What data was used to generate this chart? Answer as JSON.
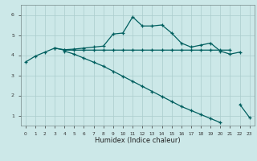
{
  "xlabel": "Humidex (Indice chaleur)",
  "xlim": [
    -0.5,
    23.5
  ],
  "ylim": [
    0.5,
    6.5
  ],
  "xticks": [
    0,
    1,
    2,
    3,
    4,
    5,
    6,
    7,
    8,
    9,
    10,
    11,
    12,
    13,
    14,
    15,
    16,
    17,
    18,
    19,
    20,
    21,
    22,
    23
  ],
  "yticks": [
    1,
    2,
    3,
    4,
    5,
    6
  ],
  "background_color": "#cce8e8",
  "grid_color": "#aacccc",
  "line_color": "#005f5f",
  "line1_x": [
    0,
    1,
    2,
    3,
    4,
    5,
    6,
    7,
    8,
    9,
    10,
    11,
    12,
    13,
    14,
    15,
    16,
    17,
    18,
    19,
    20,
    21,
    22
  ],
  "line1_y": [
    3.65,
    3.95,
    4.15,
    4.35,
    4.27,
    4.3,
    4.35,
    4.4,
    4.45,
    5.05,
    5.1,
    5.9,
    5.45,
    5.45,
    5.5,
    5.1,
    4.6,
    4.4,
    4.5,
    4.6,
    4.2,
    4.05,
    4.15
  ],
  "line2_x": [
    3,
    4,
    5,
    6,
    7,
    8,
    9,
    10,
    11,
    12,
    13,
    14,
    15,
    16,
    17,
    18,
    19,
    20,
    21
  ],
  "line2_y": [
    4.35,
    4.25,
    4.25,
    4.25,
    4.25,
    4.25,
    4.25,
    4.25,
    4.25,
    4.25,
    4.25,
    4.25,
    4.25,
    4.25,
    4.25,
    4.25,
    4.25,
    4.25,
    4.25
  ],
  "line3_x": [
    4,
    5,
    6,
    7,
    8,
    9,
    10,
    11,
    12,
    13,
    14,
    15,
    16,
    17,
    18,
    19,
    20,
    22,
    23
  ],
  "line3_y": [
    4.2,
    4.05,
    3.85,
    3.65,
    3.45,
    3.2,
    2.95,
    2.7,
    2.45,
    2.2,
    1.95,
    1.7,
    1.45,
    1.25,
    1.05,
    0.85,
    0.65,
    1.55,
    0.9
  ]
}
